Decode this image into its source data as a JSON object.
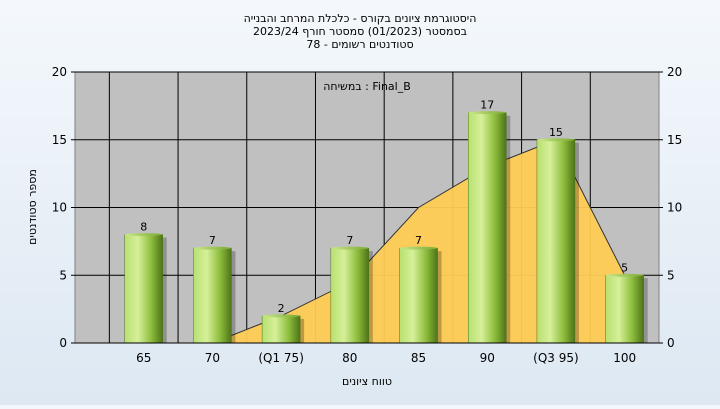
{
  "chart_data": {
    "type": "bar",
    "title_lines": [
      "היסטוגרמת ציונים בקורס - כלכלת המרחב והבנייה",
      "בסמסטר  (01/2023)  סמסטר חורף  2023/24",
      "סטודנטים רשומים - 78"
    ],
    "annotation": "במשיחה : Final_B",
    "xlabel": "טווח ציונים",
    "ylabel": "מספר סטודנטים",
    "ylim": [
      0,
      20
    ],
    "yticks": [
      0,
      5,
      10,
      15,
      20
    ],
    "categories": [
      "65",
      "70",
      "(Q1 75)",
      "80",
      "85",
      "90",
      "(Q3 95)",
      "100"
    ],
    "values": [
      8,
      7,
      2,
      7,
      7,
      17,
      15,
      5
    ],
    "area_values": [
      0,
      0,
      2,
      4.5,
      10,
      13,
      15,
      5
    ],
    "grid": true,
    "colors": {
      "plot_bg": "#c0c0c0",
      "bar": "#9acd47",
      "area": "#ffcc55",
      "grid": "#000000"
    }
  }
}
